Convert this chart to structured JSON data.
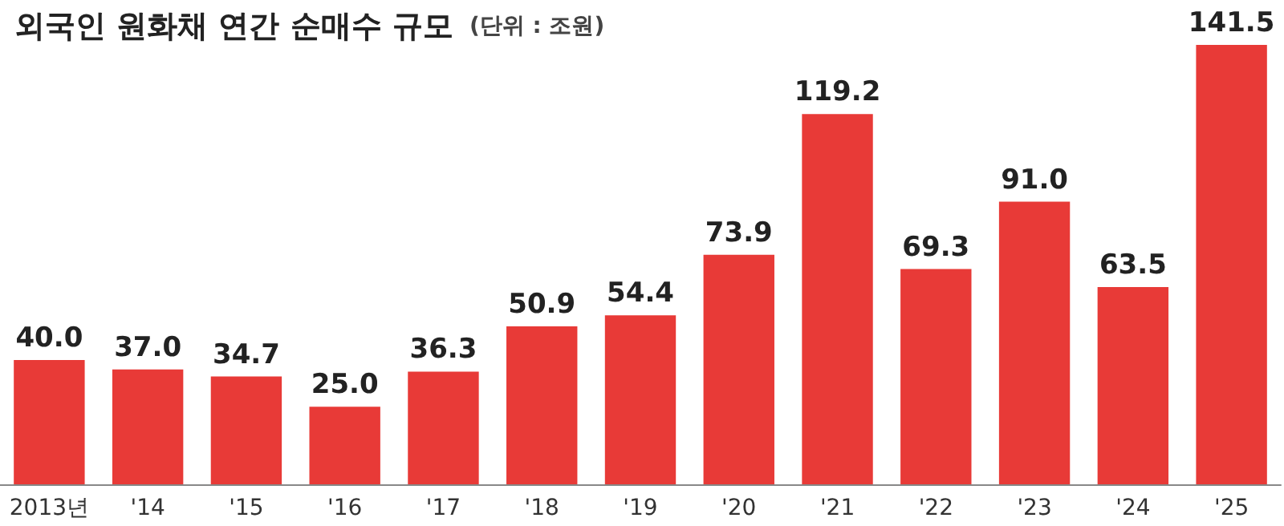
{
  "chart_data": {
    "type": "bar",
    "title": "외국인 원화채 연간 순매수 규모",
    "subtitle": "(단위 : 조원)",
    "categories": [
      "2013년",
      "'14",
      "'15",
      "'16",
      "'17",
      "'18",
      "'19",
      "'20",
      "'21",
      "'22",
      "'23",
      "'24",
      "'25"
    ],
    "values": [
      40.0,
      37.0,
      34.7,
      25.0,
      36.3,
      50.9,
      54.4,
      73.9,
      119.2,
      69.3,
      91.0,
      63.5,
      141.5
    ],
    "value_labels": [
      "40.0",
      "37.0",
      "34.7",
      "25.0",
      "36.3",
      "50.9",
      "54.4",
      "73.9",
      "119.2",
      "69.3",
      "91.0",
      "63.5",
      "141.5"
    ],
    "color": "#e83a37"
  }
}
